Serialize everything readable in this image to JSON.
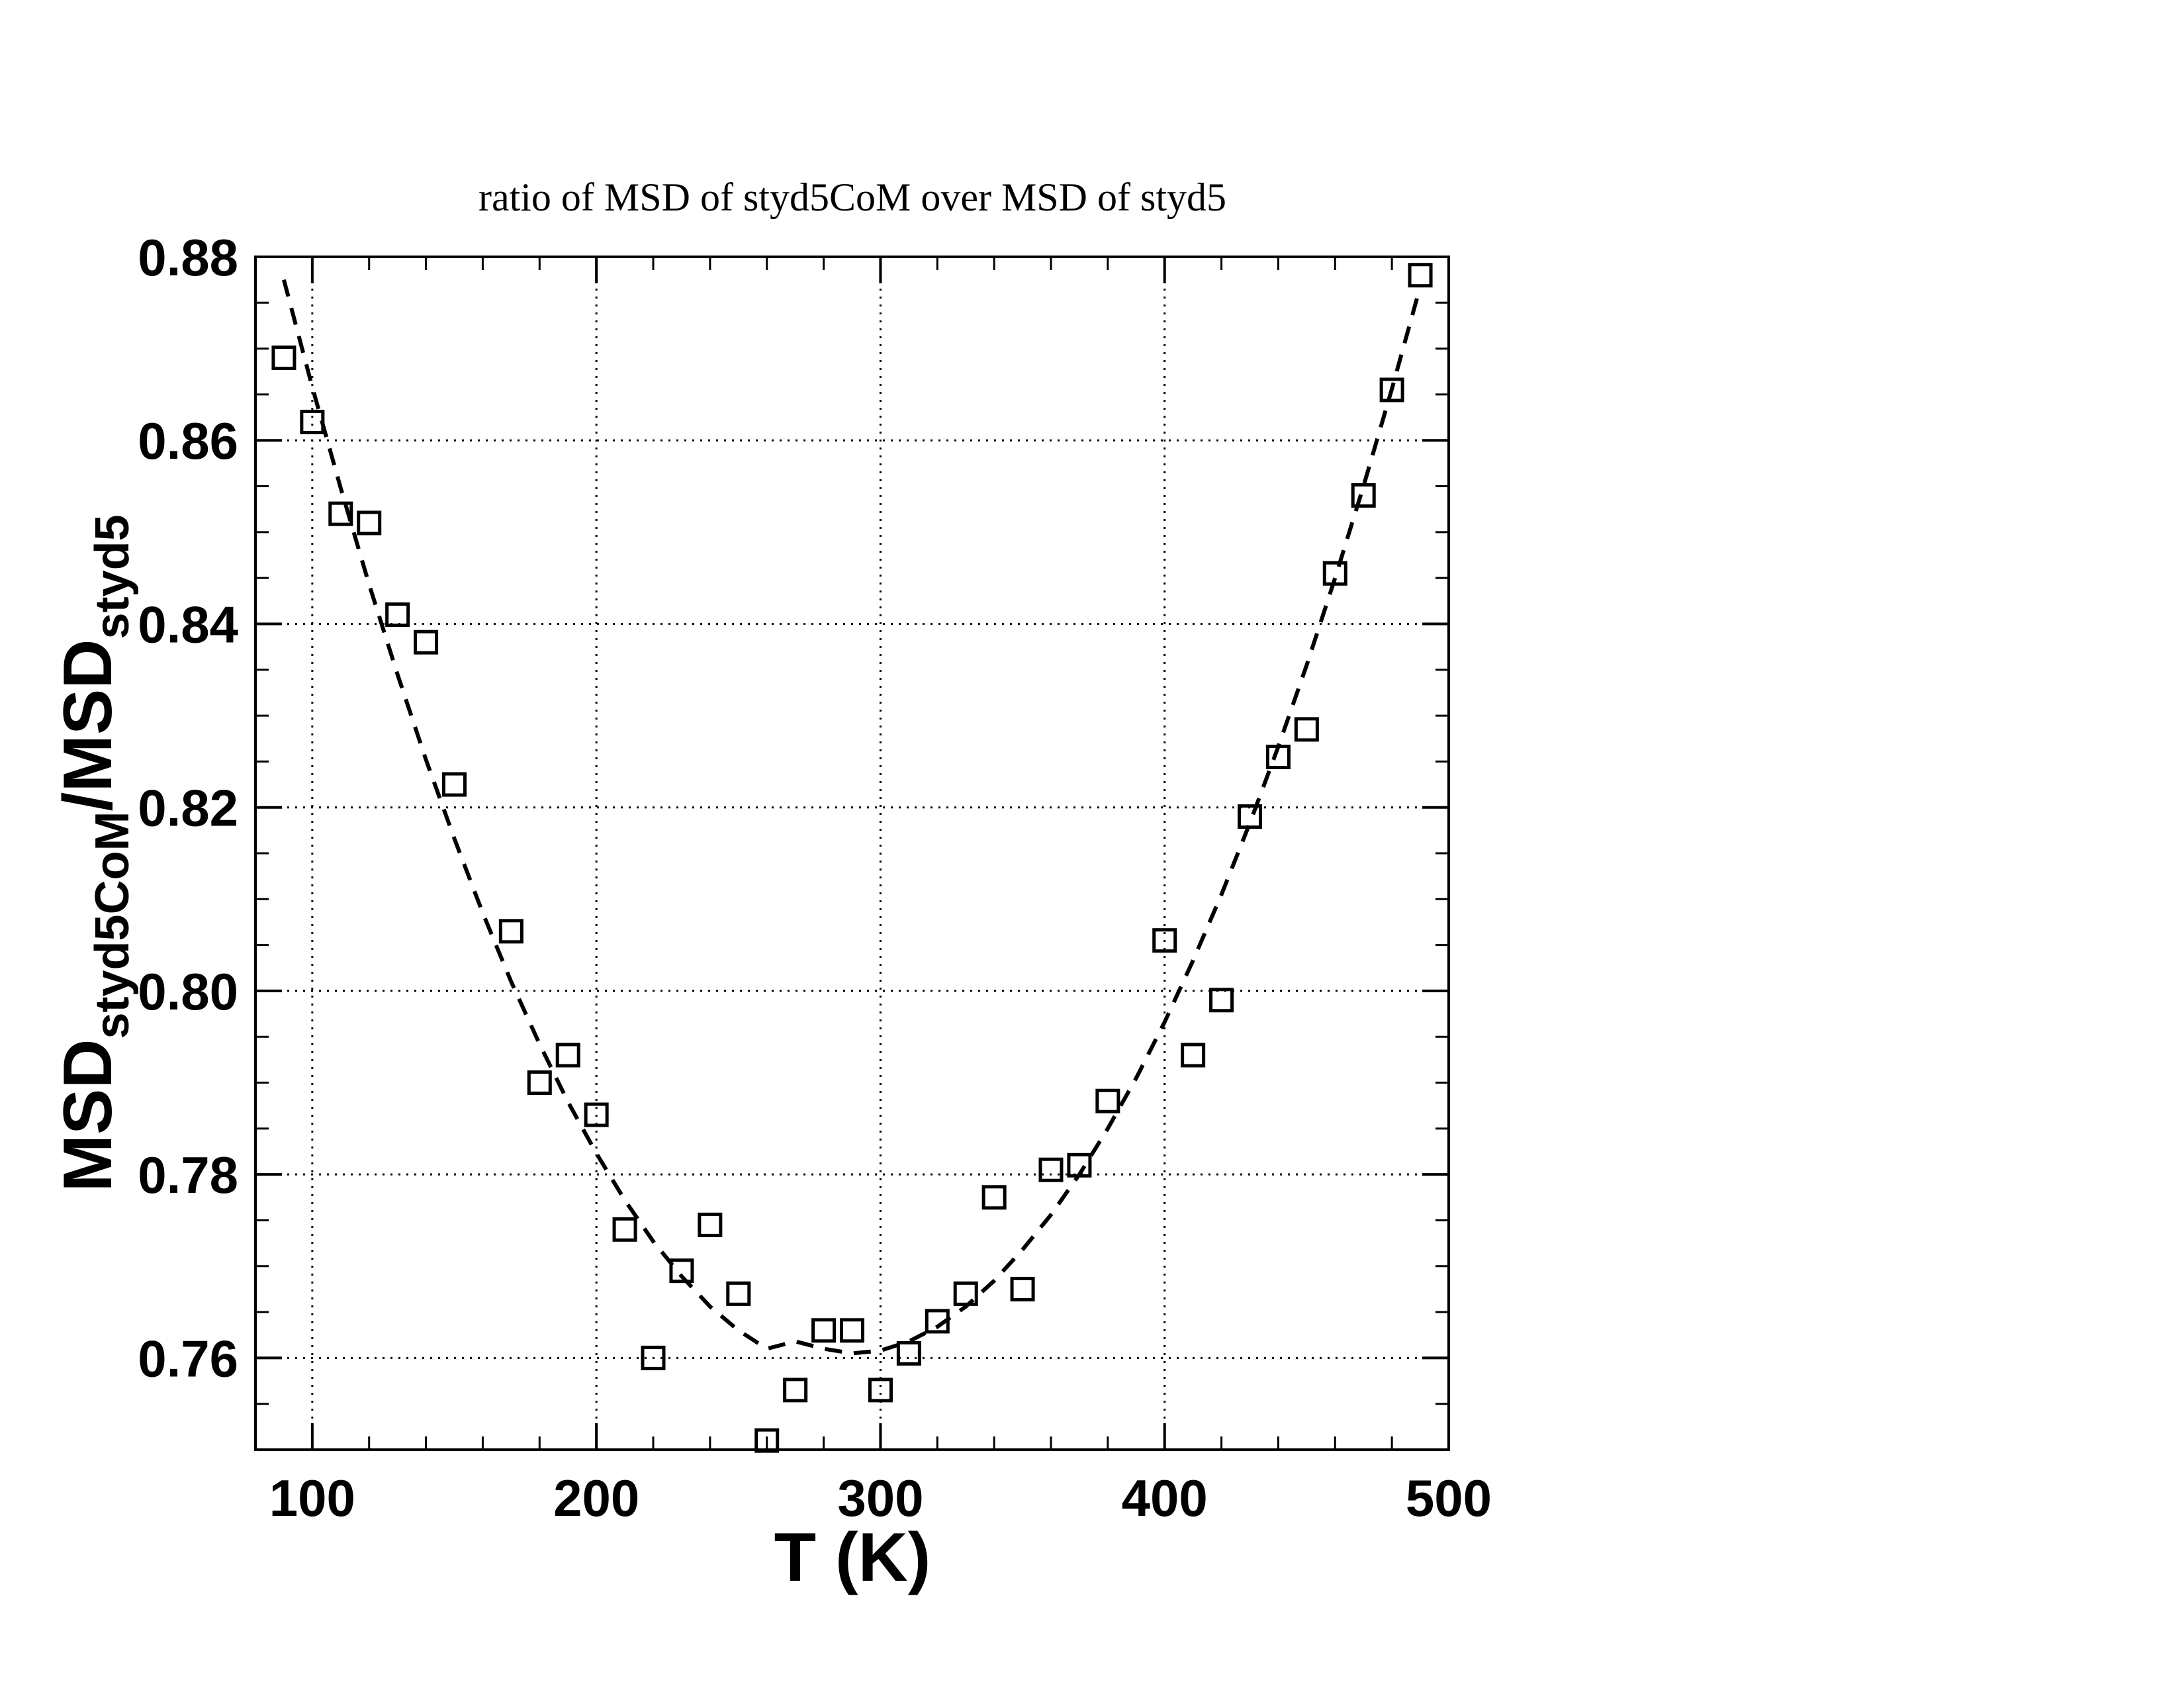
{
  "chart_data": {
    "type": "scatter",
    "title": "ratio of MSD of styd5CoM over MSD of styd5",
    "xlabel": "T (K)",
    "ylabel": {
      "base1": "MSD",
      "sub1": "styd5CoM",
      "slash": "/",
      "base2": "MSD",
      "sub2": "styd5"
    },
    "xlim": [
      80,
      500
    ],
    "ylim": [
      0.75,
      0.88
    ],
    "x_ticks": [
      100,
      200,
      300,
      400,
      500
    ],
    "x_tick_labels": [
      "100",
      "200",
      "300",
      "400",
      "500"
    ],
    "y_ticks": [
      0.76,
      0.78,
      0.8,
      0.82,
      0.84,
      0.86,
      0.88
    ],
    "y_tick_labels": [
      "0.76",
      "0.78",
      "0.80",
      "0.82",
      "0.84",
      "0.86",
      "0.88"
    ],
    "x_minor_step": 20,
    "y_minor_step": 0.005,
    "grid": true,
    "grid_style": "dotted",
    "series": [
      {
        "kind": "points",
        "marker": "open-square",
        "x": [
          90,
          100,
          110,
          120,
          130,
          140,
          150,
          170,
          180,
          190,
          200,
          210,
          220,
          230,
          240,
          250,
          260,
          270,
          280,
          290,
          300,
          310,
          320,
          330,
          340,
          350,
          360,
          370,
          380,
          400,
          410,
          420,
          430,
          440,
          450,
          460,
          470,
          480,
          490
        ],
        "y": [
          0.869,
          0.862,
          0.852,
          0.851,
          0.841,
          0.838,
          0.8225,
          0.8065,
          0.79,
          0.793,
          0.7865,
          0.774,
          0.76,
          0.7695,
          0.7745,
          0.767,
          0.751,
          0.7565,
          0.763,
          0.763,
          0.7565,
          0.7605,
          0.764,
          0.767,
          0.7775,
          0.7675,
          0.7805,
          0.781,
          0.788,
          0.8055,
          0.793,
          0.799,
          0.819,
          0.8255,
          0.8285,
          0.8455,
          0.854,
          0.8655,
          0.878
        ]
      },
      {
        "kind": "fit",
        "style": "dashed",
        "x": [
          90,
          100,
          110,
          120,
          130,
          140,
          150,
          160,
          170,
          180,
          190,
          200,
          210,
          220,
          230,
          240,
          250,
          260,
          270,
          280,
          290,
          300,
          310,
          320,
          330,
          340,
          350,
          360,
          370,
          380,
          390,
          400,
          410,
          420,
          430,
          440,
          450,
          460,
          470,
          480,
          490
        ],
        "y": [
          0.8775,
          0.8658,
          0.8548,
          0.8443,
          0.8345,
          0.8252,
          0.8166,
          0.8085,
          0.801,
          0.7942,
          0.7879,
          0.7823,
          0.7772,
          0.7727,
          0.7689,
          0.7656,
          0.763,
          0.761,
          0.7618,
          0.761,
          0.7605,
          0.7608,
          0.7618,
          0.7634,
          0.7656,
          0.7684,
          0.7718,
          0.7756,
          0.78,
          0.785,
          0.7905,
          0.7966,
          0.8033,
          0.8105,
          0.8183,
          0.8266,
          0.8355,
          0.845,
          0.855,
          0.8656,
          0.8768
        ]
      }
    ],
    "colors": {
      "ink": "#000000",
      "background": "#ffffff"
    }
  }
}
